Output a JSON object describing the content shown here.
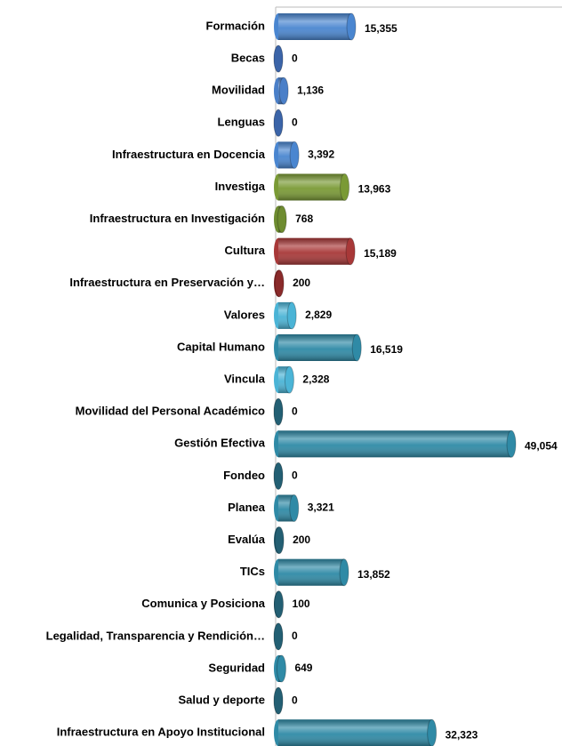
{
  "chart_data": {
    "type": "bar",
    "orientation": "horizontal",
    "categories": [
      "Formación",
      "Becas",
      "Movilidad",
      "Lenguas",
      "Infraestructura en Docencia",
      "Investiga",
      "Infraestructura en Investigación",
      "Cultura",
      "Infraestructura en Preservación y…",
      "Valores",
      "Capital Humano",
      "Vincula",
      "Movilidad del Personal Académico",
      "Gestión Efectiva",
      "Fondeo",
      "Planea",
      "Evalúa",
      "TICs",
      "Comunica y Posiciona",
      "Legalidad, Transparencia y Rendición…",
      "Seguridad",
      "Salud y deporte",
      "Infraestructura en Apoyo Institucional"
    ],
    "values": [
      15355,
      0,
      1136,
      0,
      3392,
      13963,
      768,
      15189,
      200,
      2829,
      16519,
      2328,
      0,
      49054,
      0,
      3321,
      200,
      13852,
      100,
      0,
      649,
      0,
      32323
    ],
    "value_labels": [
      "15,355",
      "0",
      "1,136",
      "0",
      "3,392",
      "13,963",
      "768",
      "15,189",
      "200",
      "2,829",
      "16,519",
      "2,328",
      "0",
      "49,054",
      "0",
      "3,321",
      "200",
      "13,852",
      "100",
      "0",
      "649",
      "0",
      "32,323"
    ],
    "colors": [
      "#4a86d0",
      "#3b64a8",
      "#4a7fc8",
      "#3b64a8",
      "#4a86d0",
      "#7a9a35",
      "#6e8c30",
      "#a83838",
      "#8a2a2a",
      "#4bb4d6",
      "#2f8aa6",
      "#4bb4d6",
      "#235f73",
      "#2f8aa6",
      "#235f73",
      "#2f8aa6",
      "#235f73",
      "#2f8aa6",
      "#235f73",
      "#235f73",
      "#2f8aa6",
      "#235f73",
      "#2f8aa6"
    ]
  }
}
